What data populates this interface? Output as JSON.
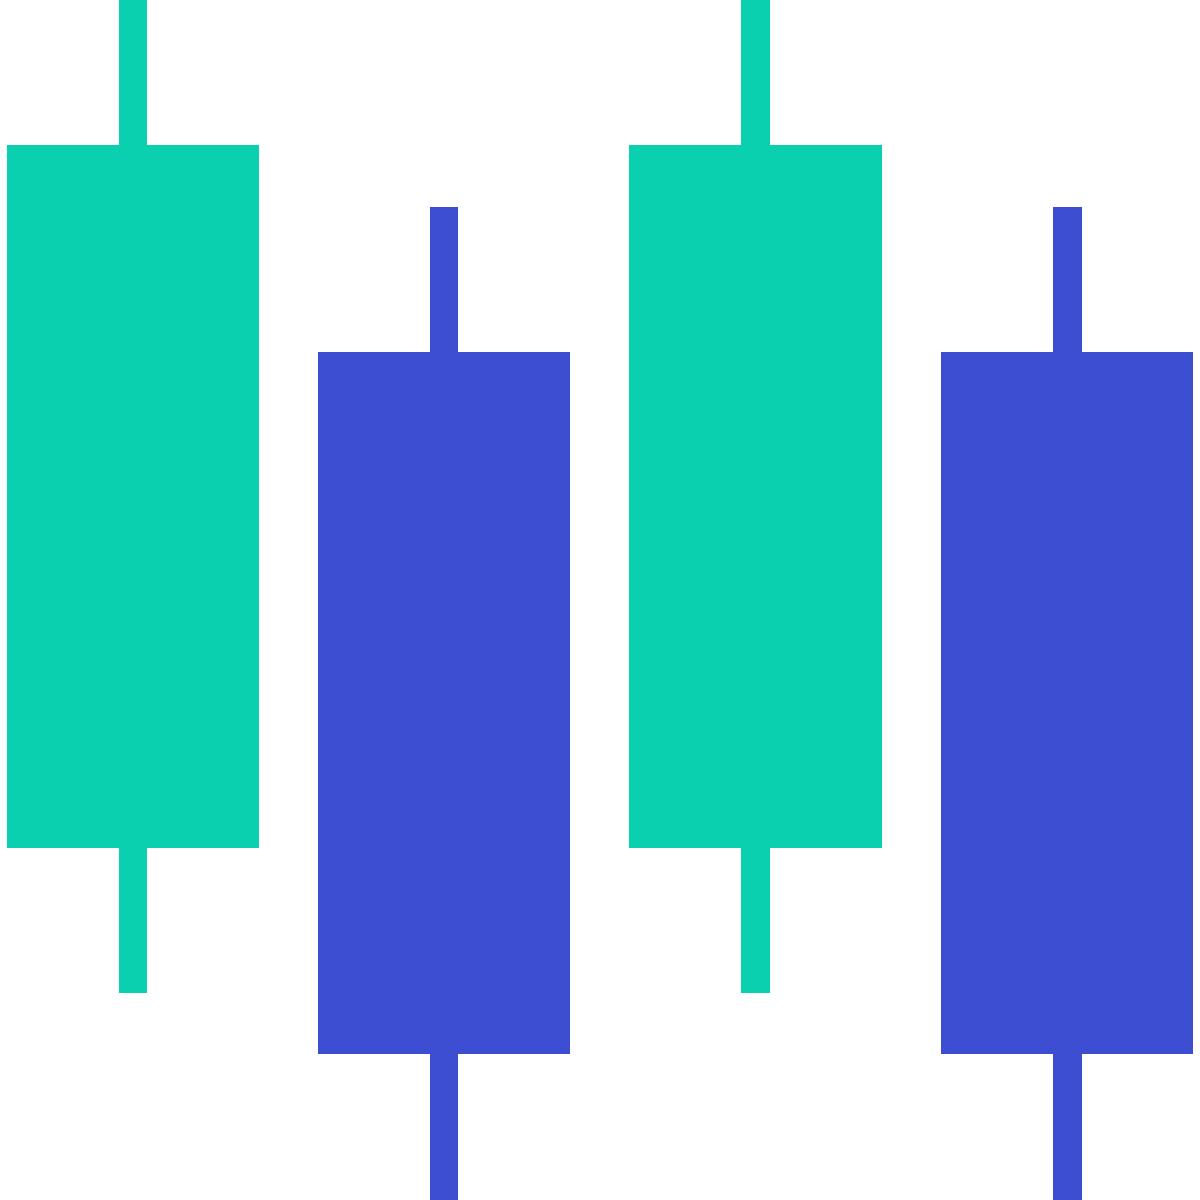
{
  "graphic": {
    "icon": "candlestick-chart-icon",
    "colors": {
      "background": "#ffffff",
      "green": "#0ad0af",
      "blue": "#3d4dd2"
    },
    "candles": [
      {
        "name": "candle-1",
        "color": "green"
      },
      {
        "name": "candle-2",
        "color": "blue"
      },
      {
        "name": "candle-3",
        "color": "green"
      },
      {
        "name": "candle-4",
        "color": "blue"
      }
    ]
  }
}
